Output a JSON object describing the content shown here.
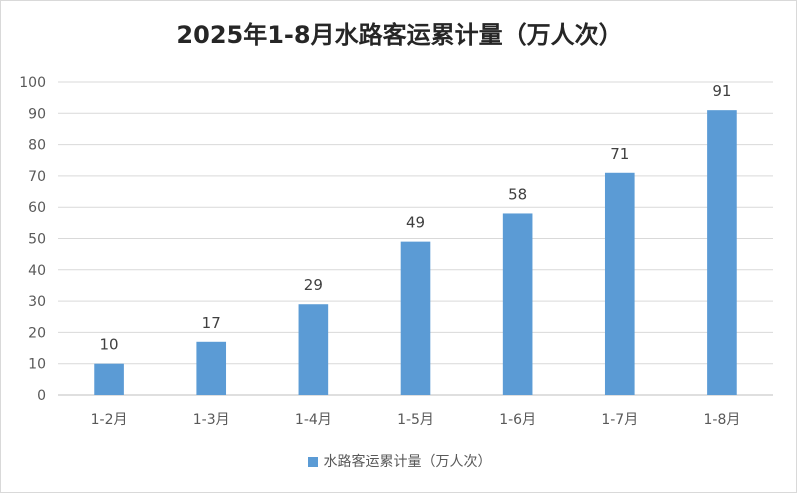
{
  "chart_data": {
    "type": "bar",
    "title": "2025年1-8月水路客运累计量（万人次）",
    "categories": [
      "1-2月",
      "1-3月",
      "1-4月",
      "1-5月",
      "1-6月",
      "1-7月",
      "1-8月"
    ],
    "series": [
      {
        "name": "水路客运累计量（万人次）",
        "values": [
          10,
          17,
          29,
          49,
          58,
          71,
          91
        ]
      }
    ],
    "ylim": [
      0,
      100
    ],
    "yticks": [
      0,
      10,
      20,
      30,
      40,
      50,
      60,
      70,
      80,
      90,
      100
    ],
    "grid": true,
    "legend_position": "bottom",
    "data_labels": true,
    "bar_color": "#5b9bd5"
  }
}
